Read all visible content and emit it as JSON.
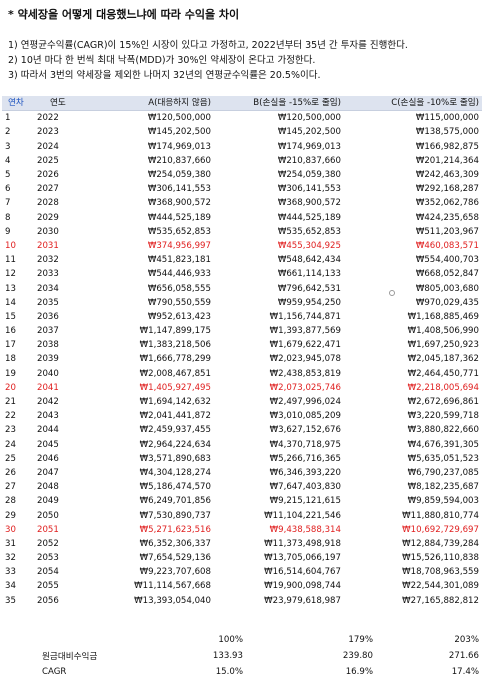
{
  "title": "* 약세장을 어떻게 대응했느냐에 따라 수익을 차이",
  "notes": [
    "1) 연평균수익률(CAGR)이 15%인 시장이 있다고 가정하고, 2022년부터 35년 간 투자를 진행한다.",
    "2) 10년 마다 한 번씩 최대 낙폭(MDD)가 30%인 약세장이 온다고 가정한다.",
    "3) 따라서 3번의 약세장을 제외한 나머지 32년의 연평균수익률은 20.5%이다."
  ],
  "table": {
    "headers": [
      "연차",
      "연도",
      "A(대응하지 않음)",
      "B(손실을 -15%로 줄임)",
      "C(손실을 -10%로 줄임)"
    ],
    "rows": [
      {
        "n": "1",
        "year": "2022",
        "a": "₩120,500,000",
        "b": "₩120,500,000",
        "c": "₩115,000,000",
        "red": false
      },
      {
        "n": "2",
        "year": "2023",
        "a": "₩145,202,500",
        "b": "₩145,202,500",
        "c": "₩138,575,000",
        "red": false
      },
      {
        "n": "3",
        "year": "2024",
        "a": "₩174,969,013",
        "b": "₩174,969,013",
        "c": "₩166,982,875",
        "red": false
      },
      {
        "n": "4",
        "year": "2025",
        "a": "₩210,837,660",
        "b": "₩210,837,660",
        "c": "₩201,214,364",
        "red": false
      },
      {
        "n": "5",
        "year": "2026",
        "a": "₩254,059,380",
        "b": "₩254,059,380",
        "c": "₩242,463,309",
        "red": false
      },
      {
        "n": "6",
        "year": "2027",
        "a": "₩306,141,553",
        "b": "₩306,141,553",
        "c": "₩292,168,287",
        "red": false
      },
      {
        "n": "7",
        "year": "2028",
        "a": "₩368,900,572",
        "b": "₩368,900,572",
        "c": "₩352,062,786",
        "red": false
      },
      {
        "n": "8",
        "year": "2029",
        "a": "₩444,525,189",
        "b": "₩444,525,189",
        "c": "₩424,235,658",
        "red": false
      },
      {
        "n": "9",
        "year": "2030",
        "a": "₩535,652,853",
        "b": "₩535,652,853",
        "c": "₩511,203,967",
        "red": false
      },
      {
        "n": "10",
        "year": "2031",
        "a": "₩374,956,997",
        "b": "₩455,304,925",
        "c": "₩460,083,571",
        "red": true
      },
      {
        "n": "11",
        "year": "2032",
        "a": "₩451,823,181",
        "b": "₩548,642,434",
        "c": "₩554,400,703",
        "red": false
      },
      {
        "n": "12",
        "year": "2033",
        "a": "₩544,446,933",
        "b": "₩661,114,133",
        "c": "₩668,052,847",
        "red": false
      },
      {
        "n": "13",
        "year": "2034",
        "a": "₩656,058,555",
        "b": "₩796,642,531",
        "c": "₩805,003,680",
        "red": false
      },
      {
        "n": "14",
        "year": "2035",
        "a": "₩790,550,559",
        "b": "₩959,954,250",
        "c": "₩970,029,435",
        "red": false
      },
      {
        "n": "15",
        "year": "2036",
        "a": "₩952,613,423",
        "b": "₩1,156,744,871",
        "c": "₩1,168,885,469",
        "red": false
      },
      {
        "n": "16",
        "year": "2037",
        "a": "₩1,147,899,175",
        "b": "₩1,393,877,569",
        "c": "₩1,408,506,990",
        "red": false
      },
      {
        "n": "17",
        "year": "2038",
        "a": "₩1,383,218,506",
        "b": "₩1,679,622,471",
        "c": "₩1,697,250,923",
        "red": false
      },
      {
        "n": "18",
        "year": "2039",
        "a": "₩1,666,778,299",
        "b": "₩2,023,945,078",
        "c": "₩2,045,187,362",
        "red": false
      },
      {
        "n": "19",
        "year": "2040",
        "a": "₩2,008,467,851",
        "b": "₩2,438,853,819",
        "c": "₩2,464,450,771",
        "red": false
      },
      {
        "n": "20",
        "year": "2041",
        "a": "₩1,405,927,495",
        "b": "₩2,073,025,746",
        "c": "₩2,218,005,694",
        "red": true
      },
      {
        "n": "21",
        "year": "2042",
        "a": "₩1,694,142,632",
        "b": "₩2,497,996,024",
        "c": "₩2,672,696,861",
        "red": false
      },
      {
        "n": "22",
        "year": "2043",
        "a": "₩2,041,441,872",
        "b": "₩3,010,085,209",
        "c": "₩3,220,599,718",
        "red": false
      },
      {
        "n": "23",
        "year": "2044",
        "a": "₩2,459,937,455",
        "b": "₩3,627,152,676",
        "c": "₩3,880,822,660",
        "red": false
      },
      {
        "n": "24",
        "year": "2045",
        "a": "₩2,964,224,634",
        "b": "₩4,370,718,975",
        "c": "₩4,676,391,305",
        "red": false
      },
      {
        "n": "25",
        "year": "2046",
        "a": "₩3,571,890,683",
        "b": "₩5,266,716,365",
        "c": "₩5,635,051,523",
        "red": false
      },
      {
        "n": "26",
        "year": "2047",
        "a": "₩4,304,128,274",
        "b": "₩6,346,393,220",
        "c": "₩6,790,237,085",
        "red": false
      },
      {
        "n": "27",
        "year": "2048",
        "a": "₩5,186,474,570",
        "b": "₩7,647,403,830",
        "c": "₩8,182,235,687",
        "red": false
      },
      {
        "n": "28",
        "year": "2049",
        "a": "₩6,249,701,856",
        "b": "₩9,215,121,615",
        "c": "₩9,859,594,003",
        "red": false
      },
      {
        "n": "29",
        "year": "2050",
        "a": "₩7,530,890,737",
        "b": "₩11,104,221,546",
        "c": "₩11,880,810,774",
        "red": false
      },
      {
        "n": "30",
        "year": "2051",
        "a": "₩5,271,623,516",
        "b": "₩9,438,588,314",
        "c": "₩10,692,729,697",
        "red": true
      },
      {
        "n": "31",
        "year": "2052",
        "a": "₩6,352,306,337",
        "b": "₩11,373,498,918",
        "c": "₩12,884,739,284",
        "red": false
      },
      {
        "n": "32",
        "year": "2053",
        "a": "₩7,654,529,136",
        "b": "₩13,705,066,197",
        "c": "₩15,526,110,838",
        "red": false
      },
      {
        "n": "33",
        "year": "2054",
        "a": "₩9,223,707,608",
        "b": "₩16,514,604,767",
        "c": "₩18,708,963,559",
        "red": false
      },
      {
        "n": "34",
        "year": "2055",
        "a": "₩11,114,567,668",
        "b": "₩19,900,098,744",
        "c": "₩22,544,301,089",
        "red": false
      },
      {
        "n": "35",
        "year": "2056",
        "a": "₩13,393,054,040",
        "b": "₩23,979,618,987",
        "c": "₩27,165,882,812",
        "red": false
      }
    ]
  },
  "summary": [
    {
      "label": "",
      "a": "100%",
      "b": "179%",
      "c": "203%"
    },
    {
      "label": "원금대비수익금",
      "a": "133.93",
      "b": "239.80",
      "c": "271.66"
    },
    {
      "label": "CAGR",
      "a": "15.0%",
      "b": "16.9%",
      "c": "17.4%"
    }
  ],
  "colors": {
    "header_bg": "#dde3ef",
    "year_header_text": "#1f55c0",
    "drawdown_text": "#e02020"
  },
  "icons": {
    "cell_marker": "small-circle-icon"
  }
}
